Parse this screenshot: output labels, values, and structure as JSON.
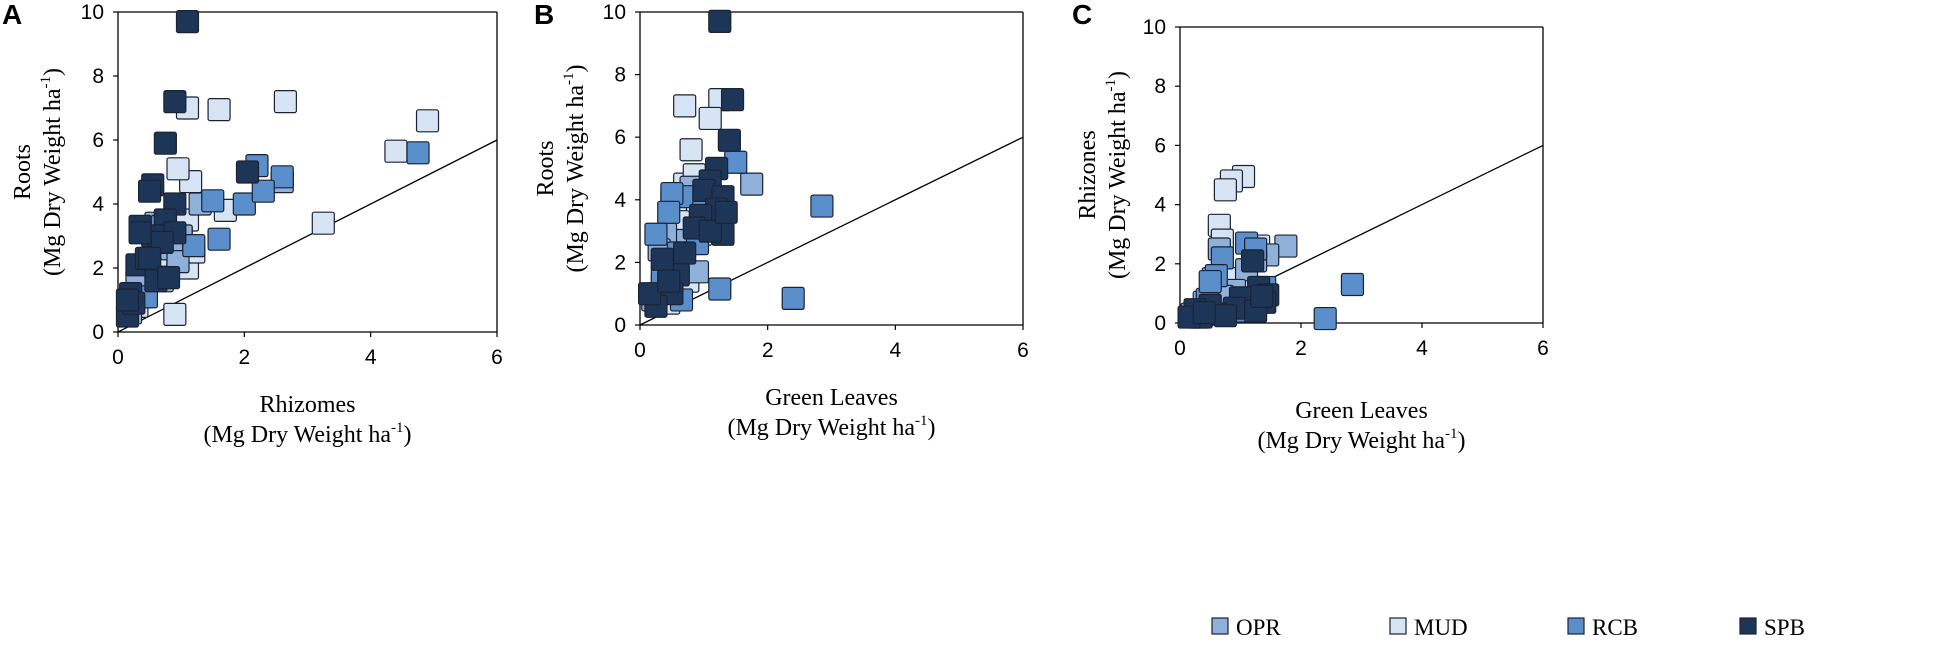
{
  "colors": {
    "OPR": "#8fb0d9",
    "MUD": "#d6e4f3",
    "RCB": "#5b8fcb",
    "SPB": "#1d3557",
    "marker_stroke": "#1b2233"
  },
  "legend": {
    "items": [
      {
        "key": "OPR",
        "label": "OPR"
      },
      {
        "key": "MUD",
        "label": "MUD"
      },
      {
        "key": "RCB",
        "label": "RCB"
      },
      {
        "key": "SPB",
        "label": "SPB"
      }
    ]
  },
  "chart_data": [
    {
      "type": "scatter",
      "panel": "A",
      "xlabel_line1": "Rhizomes",
      "xlabel_line2": "(Mg  Dry Weight  ha",
      "xlabel_sup": "-1",
      "xlabel_close": ")",
      "ylabel_line1": "Roots",
      "ylabel_line2": "(Mg  Dry Weight  ha",
      "ylabel_sup": "-1",
      "ylabel_close": ")",
      "xlim": [
        0,
        6
      ],
      "ylim": [
        0,
        10
      ],
      "xticks": [
        "0",
        "2",
        "4",
        "6"
      ],
      "yticks": [
        "0",
        "2",
        "4",
        "6",
        "8",
        "10"
      ],
      "reference_line": {
        "x": [
          0,
          6
        ],
        "y": [
          0,
          6
        ]
      },
      "series": [
        {
          "name": "MUD",
          "x": [
            1.1,
            1.6,
            2.65,
            4.9,
            4.4,
            3.25,
            0.9,
            1.1,
            1.2,
            0.8,
            1.1,
            0.6,
            0.4,
            1.7,
            1.15,
            0.95,
            1.0,
            0.3
          ],
          "y": [
            7.0,
            6.95,
            7.2,
            6.6,
            5.65,
            3.4,
            0.55,
            2.0,
            2.5,
            2.8,
            3.5,
            2.4,
            1.3,
            3.8,
            4.7,
            5.1,
            3.0,
            0.8
          ]
        },
        {
          "name": "OPR",
          "x": [
            0.5,
            0.7,
            1.0,
            1.3,
            2.6,
            0.6,
            0.4,
            0.85,
            0.2,
            0.3,
            0.95
          ],
          "y": [
            2.0,
            1.6,
            3.0,
            4.0,
            4.7,
            3.4,
            1.1,
            2.6,
            0.6,
            1.6,
            2.2
          ]
        },
        {
          "name": "RCB",
          "x": [
            4.75,
            2.6,
            2.0,
            2.3,
            2.2,
            1.5,
            1.6,
            0.7,
            1.2,
            0.45
          ],
          "y": [
            5.6,
            4.85,
            4.0,
            4.4,
            5.2,
            4.1,
            2.9,
            3.3,
            2.7,
            1.1
          ]
        },
        {
          "name": "SPB",
          "x": [
            1.1,
            0.9,
            0.75,
            0.55,
            0.5,
            0.9,
            0.75,
            0.35,
            0.55,
            0.65,
            0.3,
            0.2,
            0.15,
            0.45,
            0.6,
            0.9,
            0.7,
            0.25,
            0.5,
            0.35,
            0.8,
            2.05,
            0.15
          ],
          "y": [
            9.7,
            7.2,
            5.9,
            4.6,
            4.4,
            4.0,
            3.5,
            3.3,
            3.0,
            3.0,
            2.1,
            1.2,
            0.5,
            2.3,
            1.6,
            3.1,
            2.8,
            0.9,
            2.3,
            3.1,
            1.7,
            5.0,
            1.0
          ]
        }
      ]
    },
    {
      "type": "scatter",
      "panel": "B",
      "xlabel_line1": "Green Leaves",
      "xlabel_line2": "(Mg  Dry Weight  ha",
      "xlabel_sup": "-1",
      "xlabel_close": ")",
      "ylabel_line1": "Roots",
      "ylabel_line2": "(Mg  Dry Weight  ha",
      "ylabel_sup": "-1",
      "ylabel_close": ")",
      "xlim": [
        0,
        6
      ],
      "ylim": [
        0,
        10
      ],
      "xticks": [
        "0",
        "2",
        "4",
        "6"
      ],
      "yticks": [
        "0",
        "2",
        "4",
        "6",
        "8",
        "10"
      ],
      "reference_line": {
        "x": [
          0,
          6
        ],
        "y": [
          0,
          6
        ]
      },
      "series": [
        {
          "name": "MUD",
          "x": [
            0.7,
            1.25,
            1.1,
            0.8,
            1.2,
            0.7,
            0.5,
            0.65,
            0.9,
            0.95,
            0.55,
            0.3,
            0.45,
            0.75,
            0.6,
            0.85
          ],
          "y": [
            7.0,
            7.2,
            6.6,
            5.6,
            5.0,
            4.5,
            4.0,
            3.8,
            3.5,
            2.9,
            2.5,
            1.0,
            0.7,
            1.4,
            3.3,
            4.8
          ]
        },
        {
          "name": "OPR",
          "x": [
            1.75,
            0.35,
            0.5,
            0.8,
            1.0,
            0.65,
            0.2,
            0.4,
            0.55,
            0.9,
            0.3
          ],
          "y": [
            4.5,
            1.3,
            2.0,
            4.4,
            3.3,
            2.7,
            0.8,
            2.9,
            1.9,
            1.7,
            2.4
          ]
        },
        {
          "name": "RCB",
          "x": [
            2.85,
            1.25,
            2.4,
            1.5,
            0.75,
            0.5,
            0.45,
            0.25,
            0.6,
            1.0,
            0.35,
            0.9,
            0.65
          ],
          "y": [
            3.8,
            1.15,
            0.85,
            5.2,
            4.1,
            4.2,
            3.6,
            2.9,
            2.3,
            3.7,
            1.6,
            2.6,
            0.8
          ]
        },
        {
          "name": "SPB",
          "x": [
            1.25,
            1.45,
            1.4,
            1.2,
            1.1,
            1.0,
            1.3,
            1.2,
            0.95,
            0.85,
            0.7,
            0.6,
            0.5,
            0.35,
            0.25,
            0.15,
            1.3,
            1.1,
            0.45,
            1.35
          ],
          "y": [
            9.7,
            7.2,
            5.9,
            5.0,
            4.6,
            4.3,
            4.1,
            3.7,
            3.5,
            3.1,
            2.3,
            1.6,
            1.0,
            2.1,
            0.6,
            1.0,
            2.9,
            3.0,
            1.4,
            3.6
          ]
        }
      ]
    },
    {
      "type": "scatter",
      "panel": "C",
      "xlabel_line1": "Green Leaves",
      "xlabel_line2": "(Mg  Dry Weight  ha",
      "xlabel_sup": "-1",
      "xlabel_close": ")",
      "ylabel_line1": "Rhizones",
      "ylabel_line2": "(Mg  Dry Weight  ha",
      "ylabel_sup": "-1",
      "ylabel_close": ")",
      "xlim": [
        0,
        6
      ],
      "ylim": [
        0,
        10
      ],
      "xticks": [
        "0",
        "2",
        "4",
        "6"
      ],
      "yticks": [
        "0",
        "2",
        "4",
        "6",
        "8",
        "10"
      ],
      "reference_line": {
        "x": [
          0,
          6
        ],
        "y": [
          0,
          6
        ]
      },
      "series": [
        {
          "name": "MUD",
          "x": [
            1.05,
            0.85,
            0.75,
            0.65,
            1.3,
            0.95,
            0.5,
            0.7,
            1.2,
            0.3
          ],
          "y": [
            4.95,
            4.8,
            4.5,
            3.3,
            2.6,
            1.5,
            0.6,
            2.8,
            0.5,
            0.4
          ]
        },
        {
          "name": "OPR",
          "x": [
            1.75,
            1.45,
            0.65,
            0.55,
            1.1,
            0.4,
            0.9,
            1.25,
            0.2,
            0.7
          ],
          "y": [
            2.6,
            2.3,
            2.5,
            1.5,
            1.8,
            0.7,
            1.1,
            2.1,
            0.3,
            0.9
          ]
        },
        {
          "name": "RCB",
          "x": [
            2.85,
            2.4,
            1.1,
            1.25,
            0.7,
            0.6,
            0.45,
            0.9,
            1.4,
            0.3,
            0.5
          ],
          "y": [
            1.3,
            0.15,
            2.7,
            2.5,
            2.2,
            1.6,
            0.8,
            0.4,
            1.2,
            0.2,
            1.4
          ]
        },
        {
          "name": "SPB",
          "x": [
            1.2,
            1.3,
            1.45,
            1.4,
            1.1,
            1.0,
            0.9,
            0.6,
            0.5,
            0.35,
            0.25,
            0.15,
            1.25,
            0.75,
            0.4,
            1.35
          ],
          "y": [
            2.1,
            1.2,
            0.95,
            0.7,
            0.6,
            0.85,
            0.5,
            0.3,
            0.6,
            0.2,
            0.45,
            0.2,
            0.4,
            0.25,
            0.35,
            0.9
          ]
        }
      ]
    }
  ]
}
